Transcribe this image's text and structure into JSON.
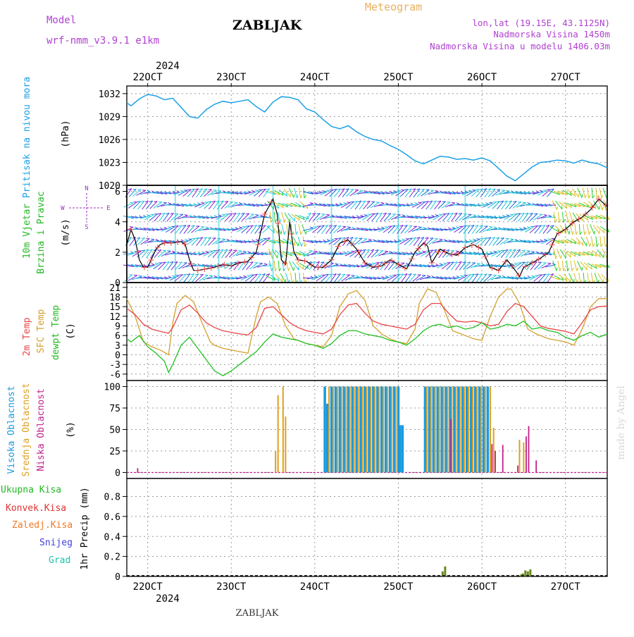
{
  "header": {
    "model_label": "Model",
    "model_name": "wrf-nmm_v3.9.1 e1km",
    "station": "ZABLJAK",
    "title": "Meteogram",
    "lonlat": "lon,lat (19.15E, 43.1125N)",
    "altitude": "Nadmorska Visina 1450m",
    "model_altitude": "Nadmorska Visina u modelu 1406.03m",
    "footer_station": "ZABLJAK",
    "watermark": "made by Angel"
  },
  "colors": {
    "pressure": "#1aa0e6",
    "temp2m": "#e84545",
    "sfc": "#d4a030",
    "dewpt": "#22c022",
    "high_cloud": "#1a9ae0",
    "mid_cloud": "#e0a020",
    "low_cloud": "#c0208a",
    "rain_total": "#22b822",
    "rain_conv": "#e03030",
    "rain_frozen": "#f07820",
    "snow": "#4040e0",
    "graupel": "#20c0b0",
    "wind_label": "#22b822",
    "wind_dir_label": "#a030c0",
    "model_text": "#b040d0",
    "meteogram_text": "#e8b060"
  },
  "time_axis": {
    "year": "2024",
    "ticks": [
      "22OCT",
      "23OCT",
      "24OCT",
      "25OCT",
      "26OCT",
      "27OCT"
    ],
    "tick_positions": [
      1,
      2,
      3,
      4,
      5,
      6
    ],
    "start": 0.75,
    "end": 6.5
  },
  "chart_data": [
    {
      "id": "pressure",
      "type": "line",
      "ylabel_lines": [
        "Pritisak na nivou mora"
      ],
      "unit": "(hPa)",
      "yticks": [
        1020,
        1023,
        1026,
        1029,
        1032
      ],
      "ylim": [
        1020,
        1033
      ],
      "series": [
        {
          "x": [
            0.75,
            0.8,
            0.9,
            1.0,
            1.1,
            1.2,
            1.3,
            1.4,
            1.5,
            1.6,
            1.7,
            1.8,
            1.9,
            2.0,
            2.1,
            2.2,
            2.3,
            2.4,
            2.5,
            2.6,
            2.7,
            2.8,
            2.9,
            3.0,
            3.1,
            3.2,
            3.3,
            3.4,
            3.5,
            3.6,
            3.7,
            3.8,
            3.9,
            4.0,
            4.1,
            4.2,
            4.3,
            4.4,
            4.5,
            4.6,
            4.7,
            4.8,
            4.9,
            5.0,
            5.1,
            5.2,
            5.3,
            5.4,
            5.5,
            5.6,
            5.7,
            5.8,
            5.9,
            6.0,
            6.1,
            6.2,
            6.3,
            6.4,
            6.5
          ],
          "y": [
            1030.8,
            1030.4,
            1031.3,
            1031.9,
            1031.7,
            1031.2,
            1031.4,
            1030.2,
            1029.0,
            1028.8,
            1029.9,
            1030.6,
            1031.0,
            1030.8,
            1031.0,
            1031.2,
            1030.3,
            1029.6,
            1030.9,
            1031.6,
            1031.5,
            1031.2,
            1030.0,
            1029.6,
            1028.6,
            1027.7,
            1027.4,
            1027.8,
            1027.0,
            1026.4,
            1026.0,
            1025.8,
            1025.2,
            1024.7,
            1024.0,
            1023.2,
            1022.8,
            1023.3,
            1023.8,
            1023.7,
            1023.4,
            1023.5,
            1023.3,
            1023.6,
            1023.2,
            1022.2,
            1021.2,
            1020.6,
            1021.5,
            1022.4,
            1023.0,
            1023.1,
            1023.3,
            1023.2,
            1022.9,
            1023.3,
            1023.0,
            1022.8,
            1022.3
          ]
        }
      ]
    },
    {
      "id": "wind",
      "type": "line",
      "ylabel_lines": [
        "10m Vjetar",
        "Brzina i Pravac"
      ],
      "unit": "(m/s)",
      "compass": [
        "N",
        "W",
        "E",
        "S"
      ],
      "yticks": [
        0,
        2,
        4,
        6
      ],
      "ylim": [
        0,
        6.4
      ],
      "series": [
        {
          "x": [
            0.75,
            0.8,
            0.85,
            0.9,
            0.95,
            1.0,
            1.05,
            1.1,
            1.15,
            1.2,
            1.3,
            1.4,
            1.45,
            1.5,
            1.55,
            1.6,
            1.7,
            1.8,
            1.9,
            2.0,
            2.1,
            2.2,
            2.3,
            2.4,
            2.5,
            2.55,
            2.6,
            2.65,
            2.7,
            2.75,
            2.8,
            2.9,
            3.0,
            3.1,
            3.2,
            3.3,
            3.4,
            3.5,
            3.6,
            3.7,
            3.8,
            3.9,
            4.0,
            4.1,
            4.2,
            4.3,
            4.35,
            4.4,
            4.5,
            4.6,
            4.7,
            4.8,
            4.9,
            5.0,
            5.1,
            5.2,
            5.3,
            5.4,
            5.45,
            5.5,
            5.6,
            5.7,
            5.8,
            5.9,
            6.0,
            6.1,
            6.2,
            6.3,
            6.4,
            6.5
          ],
          "y": [
            2.5,
            3.5,
            2.8,
            1.5,
            1.0,
            1.0,
            1.6,
            2.2,
            2.5,
            2.6,
            2.6,
            2.7,
            2.5,
            1.5,
            0.8,
            0.8,
            0.9,
            1.0,
            1.2,
            1.1,
            1.3,
            1.4,
            2.0,
            4.5,
            5.5,
            4.5,
            1.5,
            1.2,
            4.0,
            2.0,
            1.5,
            1.4,
            1.0,
            1.0,
            1.5,
            2.6,
            2.8,
            2.2,
            1.3,
            1.0,
            1.1,
            1.5,
            1.2,
            0.9,
            2.0,
            2.6,
            2.4,
            1.3,
            2.2,
            1.9,
            1.8,
            2.3,
            2.5,
            2.2,
            1.0,
            0.8,
            1.5,
            0.8,
            0.4,
            1.0,
            1.3,
            1.6,
            2.0,
            3.2,
            3.5,
            4.0,
            4.3,
            4.8,
            5.5,
            5.0
          ]
        }
      ]
    },
    {
      "id": "temperature",
      "type": "line",
      "ylabel_lines": [
        "2m Temp",
        "SFC Temp",
        "dewpt Temp"
      ],
      "unit": "(C)",
      "yticks": [
        -6,
        -3,
        0,
        3,
        6,
        9,
        12,
        15,
        18,
        21
      ],
      "ylim": [
        -8,
        22.5
      ],
      "series": [
        {
          "name": "2m Temp",
          "x": [
            0.75,
            0.85,
            0.95,
            1.05,
            1.15,
            1.25,
            1.3,
            1.4,
            1.5,
            1.6,
            1.7,
            1.8,
            1.9,
            2.0,
            2.1,
            2.2,
            2.3,
            2.4,
            2.5,
            2.6,
            2.7,
            2.8,
            2.9,
            3.0,
            3.1,
            3.2,
            3.3,
            3.4,
            3.5,
            3.6,
            3.7,
            3.8,
            3.9,
            4.0,
            4.1,
            4.2,
            4.3,
            4.4,
            4.5,
            4.6,
            4.7,
            4.8,
            4.9,
            5.0,
            5.1,
            5.2,
            5.3,
            5.4,
            5.5,
            5.6,
            5.7,
            5.8,
            5.9,
            6.0,
            6.1,
            6.2,
            6.3,
            6.4,
            6.5
          ],
          "y": [
            14.5,
            12.5,
            9.5,
            8.0,
            7.3,
            6.7,
            8.5,
            14.0,
            15.5,
            13.0,
            10.0,
            8.5,
            7.5,
            7.0,
            6.5,
            6.2,
            8.5,
            14.5,
            15.0,
            12.5,
            10.0,
            8.5,
            7.5,
            7.0,
            6.5,
            8.0,
            12.5,
            15.5,
            16.0,
            13.0,
            10.5,
            9.5,
            9.0,
            8.5,
            8.0,
            9.5,
            14.0,
            16.0,
            16.0,
            13.0,
            10.5,
            10.2,
            10.5,
            10.0,
            9.0,
            9.5,
            13.5,
            16.0,
            15.0,
            12.0,
            9.0,
            8.2,
            7.8,
            7.3,
            6.5,
            10.0,
            14.0,
            15.0,
            15.2
          ]
        },
        {
          "name": "SFC Temp",
          "x": [
            0.75,
            0.85,
            0.95,
            1.05,
            1.15,
            1.25,
            1.3,
            1.35,
            1.45,
            1.55,
            1.65,
            1.75,
            1.8,
            1.9,
            2.0,
            2.1,
            2.2,
            2.3,
            2.35,
            2.45,
            2.55,
            2.65,
            2.75,
            2.8,
            2.9,
            3.0,
            3.1,
            3.2,
            3.3,
            3.4,
            3.5,
            3.6,
            3.7,
            3.8,
            3.9,
            4.0,
            4.1,
            4.2,
            4.25,
            4.35,
            4.45,
            4.55,
            4.65,
            4.75,
            4.8,
            4.9,
            5.0,
            5.1,
            5.2,
            5.3,
            5.35,
            5.45,
            5.55,
            5.65,
            5.75,
            5.8,
            5.9,
            6.0,
            6.1,
            6.2,
            6.3,
            6.4,
            6.5
          ],
          "y": [
            17.5,
            12.0,
            4.0,
            2.5,
            1.5,
            0.0,
            10.0,
            16.0,
            18.5,
            16.5,
            10.0,
            4.0,
            3.0,
            2.0,
            1.5,
            1.0,
            0.5,
            12.0,
            16.5,
            18.0,
            16.0,
            9.0,
            5.0,
            4.5,
            3.5,
            3.0,
            2.5,
            6.0,
            15.0,
            19.0,
            20.0,
            17.0,
            9.0,
            6.5,
            5.0,
            4.0,
            3.5,
            8.0,
            16.0,
            20.5,
            19.5,
            14.0,
            7.5,
            6.5,
            6.0,
            5.0,
            4.5,
            12.0,
            18.0,
            20.5,
            20.5,
            16.0,
            8.0,
            6.5,
            5.5,
            5.0,
            4.5,
            4.0,
            3.0,
            8.0,
            15.0,
            17.5,
            17.5
          ]
        },
        {
          "name": "dewpt Temp",
          "x": [
            0.75,
            0.8,
            0.9,
            1.0,
            1.1,
            1.2,
            1.25,
            1.3,
            1.4,
            1.5,
            1.6,
            1.7,
            1.8,
            1.9,
            2.0,
            2.1,
            2.2,
            2.3,
            2.4,
            2.5,
            2.6,
            2.7,
            2.8,
            2.9,
            3.0,
            3.1,
            3.2,
            3.3,
            3.4,
            3.5,
            3.6,
            3.7,
            3.8,
            3.9,
            4.0,
            4.1,
            4.2,
            4.3,
            4.4,
            4.5,
            4.6,
            4.7,
            4.8,
            4.9,
            5.0,
            5.1,
            5.2,
            5.3,
            5.4,
            5.5,
            5.6,
            5.7,
            5.8,
            5.9,
            6.0,
            6.1,
            6.2,
            6.3,
            6.4,
            6.5
          ],
          "y": [
            5.0,
            4.0,
            6.0,
            2.5,
            0.5,
            -2.0,
            -5.5,
            -3.0,
            3.0,
            5.5,
            2.0,
            -1.5,
            -5.0,
            -6.5,
            -5.0,
            -3.0,
            -1.0,
            1.0,
            4.0,
            6.5,
            5.5,
            5.0,
            4.5,
            3.5,
            3.0,
            2.0,
            3.5,
            6.0,
            7.5,
            7.5,
            6.5,
            6.0,
            5.5,
            4.5,
            4.0,
            3.0,
            5.0,
            7.5,
            9.0,
            9.5,
            8.5,
            9.0,
            8.0,
            8.5,
            10.0,
            8.0,
            8.5,
            9.5,
            9.0,
            10.5,
            8.0,
            8.5,
            7.5,
            7.0,
            5.5,
            4.5,
            6.0,
            7.0,
            5.5,
            6.5
          ]
        }
      ]
    },
    {
      "id": "clouds",
      "type": "bar",
      "ylabel_lines": [
        "Visoka Oblacnost",
        "Srednja Oblacnost",
        "Niska Oblacnost"
      ],
      "unit": "(%)",
      "yticks": [
        0,
        25,
        50,
        75,
        100
      ],
      "ylim": [
        -7,
        107
      ],
      "high_bars": [
        [
          3.12,
          100
        ],
        [
          3.15,
          80
        ],
        [
          3.2,
          100
        ],
        [
          3.25,
          100
        ],
        [
          3.3,
          100
        ],
        [
          3.35,
          100
        ],
        [
          3.4,
          100
        ],
        [
          3.45,
          100
        ],
        [
          3.5,
          100
        ],
        [
          3.55,
          100
        ],
        [
          3.6,
          100
        ],
        [
          3.65,
          100
        ],
        [
          3.7,
          100
        ],
        [
          3.75,
          100
        ],
        [
          3.8,
          100
        ],
        [
          3.85,
          100
        ],
        [
          3.9,
          100
        ],
        [
          3.95,
          100
        ],
        [
          4.0,
          100
        ],
        [
          4.02,
          55
        ],
        [
          4.05,
          55
        ],
        [
          4.32,
          100
        ],
        [
          4.37,
          100
        ],
        [
          4.42,
          100
        ],
        [
          4.47,
          100
        ],
        [
          4.52,
          100
        ],
        [
          4.57,
          100
        ],
        [
          4.62,
          100
        ],
        [
          4.67,
          100
        ],
        [
          4.72,
          100
        ],
        [
          4.77,
          100
        ],
        [
          4.82,
          100
        ],
        [
          4.87,
          100
        ],
        [
          4.92,
          100
        ],
        [
          4.97,
          100
        ],
        [
          5.02,
          100
        ],
        [
          5.07,
          100
        ]
      ],
      "mid_bars": [
        [
          2.53,
          25
        ],
        [
          2.56,
          90
        ],
        [
          2.62,
          100
        ],
        [
          2.65,
          65
        ],
        [
          3.17,
          100
        ],
        [
          3.22,
          100
        ],
        [
          3.27,
          100
        ],
        [
          3.32,
          100
        ],
        [
          3.37,
          100
        ],
        [
          3.42,
          100
        ],
        [
          3.47,
          100
        ],
        [
          3.52,
          100
        ],
        [
          3.57,
          100
        ],
        [
          3.62,
          100
        ],
        [
          3.67,
          100
        ],
        [
          3.72,
          100
        ],
        [
          3.77,
          100
        ],
        [
          3.82,
          100
        ],
        [
          3.87,
          100
        ],
        [
          3.92,
          100
        ],
        [
          3.97,
          100
        ],
        [
          4.34,
          100
        ],
        [
          4.39,
          100
        ],
        [
          4.44,
          100
        ],
        [
          4.49,
          100
        ],
        [
          4.54,
          100
        ],
        [
          4.59,
          100
        ],
        [
          4.64,
          100
        ],
        [
          4.69,
          100
        ],
        [
          4.74,
          100
        ],
        [
          4.79,
          100
        ],
        [
          4.84,
          100
        ],
        [
          4.89,
          100
        ],
        [
          4.94,
          100
        ],
        [
          4.99,
          100
        ],
        [
          5.04,
          100
        ],
        [
          5.1,
          100
        ],
        [
          5.14,
          52
        ],
        [
          5.45,
          38
        ],
        [
          5.5,
          35
        ]
      ],
      "low_bars": [
        [
          0.88,
          5
        ],
        [
          4.63,
          62
        ],
        [
          5.12,
          33
        ],
        [
          5.16,
          25
        ],
        [
          5.25,
          32
        ],
        [
          5.43,
          8
        ],
        [
          5.53,
          42
        ],
        [
          5.56,
          54
        ],
        [
          5.65,
          14
        ]
      ]
    },
    {
      "id": "precip",
      "type": "bar",
      "legend": [
        "Ukupna Kisa",
        "Konvek.Kisa",
        "Zaledj.Kisa",
        "Snijeg",
        "Grad"
      ],
      "ylabel": "1hr Precip (mm)",
      "yticks": [
        0,
        0.2,
        0.4,
        0.6,
        0.8
      ],
      "ylim": [
        0,
        0.98
      ],
      "bars": [
        [
          4.53,
          0.05
        ],
        [
          4.56,
          0.1
        ],
        [
          5.47,
          0.02
        ],
        [
          5.49,
          0.03
        ],
        [
          5.52,
          0.06
        ],
        [
          5.55,
          0.05
        ],
        [
          5.58,
          0.07
        ]
      ]
    }
  ]
}
